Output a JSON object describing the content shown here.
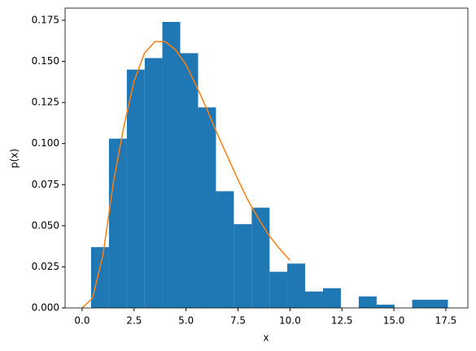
{
  "chart_data": {
    "type": "histogram",
    "xlabel": "x",
    "ylabel": "p(x)",
    "bins": [
      0.43,
      1.29,
      2.15,
      3.01,
      3.86,
      4.72,
      5.58,
      6.44,
      7.3,
      8.16,
      9.02,
      9.87,
      10.73,
      11.59,
      12.45,
      13.31,
      14.17,
      15.03,
      15.88,
      16.74,
      17.6
    ],
    "values": [
      0.037,
      0.103,
      0.145,
      0.152,
      0.174,
      0.155,
      0.122,
      0.071,
      0.051,
      0.061,
      0.022,
      0.027,
      0.01,
      0.012,
      0,
      0.007,
      0.002,
      0,
      0.005,
      0.005
    ],
    "color": "#1f77b4",
    "line": {
      "color": "#ff7f0e",
      "x": [
        0,
        0.5,
        1,
        1.5,
        2,
        2.5,
        3,
        3.5,
        4,
        4.5,
        5,
        5.5,
        6,
        6.5,
        7,
        7.5,
        8,
        8.5,
        9,
        9.5,
        10
      ],
      "values": [
        0,
        0.006,
        0.032,
        0.076,
        0.11,
        0.138,
        0.155,
        0.162,
        0.162,
        0.157,
        0.148,
        0.135,
        0.121,
        0.106,
        0.092,
        0.078,
        0.065,
        0.054,
        0.044,
        0.036,
        0.029
      ]
    },
    "xlim": [
      -0.82,
      18.56
    ],
    "ylim": [
      0,
      0.1824
    ],
    "xticks": [
      {
        "value": 0,
        "label": "0.0"
      },
      {
        "value": 2.5,
        "label": "2.5"
      },
      {
        "value": 5,
        "label": "5.0"
      },
      {
        "value": 7.5,
        "label": "7.5"
      },
      {
        "value": 10,
        "label": "10.0"
      },
      {
        "value": 12.5,
        "label": "12.5"
      },
      {
        "value": 15,
        "label": "15.0"
      },
      {
        "value": 17.5,
        "label": "17.5"
      }
    ],
    "yticks": [
      {
        "value": 0,
        "label": "0.000"
      },
      {
        "value": 0.025,
        "label": "0.025"
      },
      {
        "value": 0.05,
        "label": "0.050"
      },
      {
        "value": 0.075,
        "label": "0.075"
      },
      {
        "value": 0.1,
        "label": "0.100"
      },
      {
        "value": 0.125,
        "label": "0.125"
      },
      {
        "value": 0.15,
        "label": "0.150"
      },
      {
        "value": 0.175,
        "label": "0.175"
      }
    ]
  }
}
